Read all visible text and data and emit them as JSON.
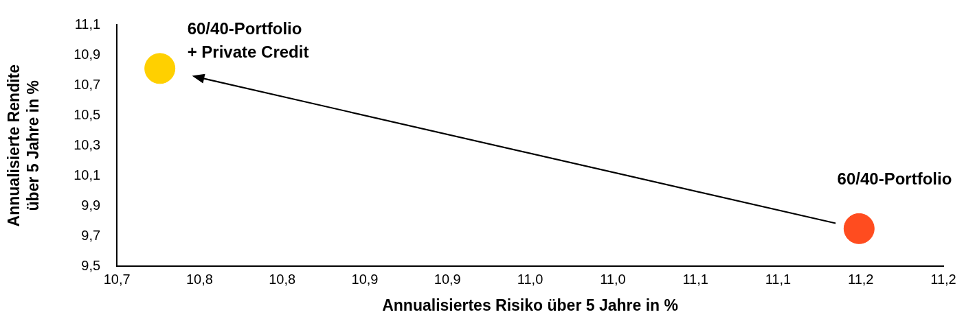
{
  "chart_data": {
    "type": "scatter",
    "xlabel": "Annualisiertes Risiko über 5 Jahre in %",
    "ylabel": "Annualisierte Rendite\nüber 5 Jahre in %",
    "x": [
      10.726,
      11.149
    ],
    "values": [
      10.81,
      9.75
    ],
    "colors": [
      "#ffd000",
      "#ff4c1f"
    ],
    "marker": "circle",
    "grid": false,
    "legend": false,
    "xlim": [
      10.7,
      11.2
    ],
    "xticks": [
      {
        "value": 10.7,
        "label": "10,7"
      },
      {
        "value": 10.75,
        "label": "10,8"
      },
      {
        "value": 10.8,
        "label": "10,8"
      },
      {
        "value": 10.85,
        "label": "10,9"
      },
      {
        "value": 10.9,
        "label": "10,9"
      },
      {
        "value": 10.95,
        "label": "11,0"
      },
      {
        "value": 11.0,
        "label": "11,0"
      },
      {
        "value": 11.05,
        "label": "11,1"
      },
      {
        "value": 11.1,
        "label": "11,1"
      },
      {
        "value": 11.15,
        "label": "11,2"
      },
      {
        "value": 11.2,
        "label": "11,2"
      }
    ],
    "ylim": [
      9.5,
      11.1
    ],
    "yticks": [
      {
        "value": 9.5,
        "label": "9,5"
      },
      {
        "value": 9.7,
        "label": "9,7"
      },
      {
        "value": 9.9,
        "label": "9,9"
      },
      {
        "value": 10.1,
        "label": "10,1"
      },
      {
        "value": 10.3,
        "label": "10,3"
      },
      {
        "value": 10.5,
        "label": "10,5"
      },
      {
        "value": 10.7,
        "label": "10,7"
      },
      {
        "value": 10.9,
        "label": "10,9"
      },
      {
        "value": 11.1,
        "label": "11,1"
      }
    ],
    "annotations": [
      {
        "text": "60/40-Portfolio\n+ Private Credit",
        "x": 10.726,
        "y": 10.81
      },
      {
        "text": "60/40-Portfolio",
        "x": 11.149,
        "y": 9.75
      }
    ]
  }
}
